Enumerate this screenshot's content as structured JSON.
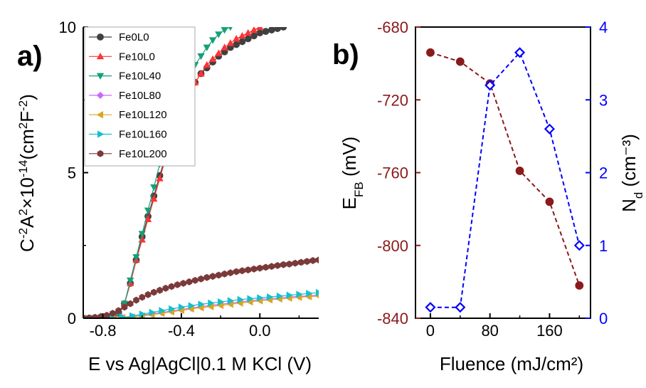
{
  "chart_data": [
    {
      "panel": "a)",
      "type": "scatter",
      "xlabel": "E vs Ag|AgCl|0.1 M KCl (V)",
      "ylabel": "C⁻²A²×10⁻¹⁴(cm²F⁻²)",
      "xlim": [
        -0.9,
        0.3
      ],
      "ylim": [
        0,
        10
      ],
      "xticks": [
        "-0.8",
        "-0.4",
        "0.0"
      ],
      "xtick_values": [
        -0.8,
        -0.4,
        0.0
      ],
      "yticks": [
        "0",
        "5",
        "10"
      ],
      "ytick_values": [
        0,
        5,
        10
      ],
      "legend_position": "top-left",
      "series": [
        {
          "name": "Fe0L0",
          "color": "#404040",
          "marker": "circle",
          "x": [
            -0.9,
            -0.87,
            -0.84,
            -0.81,
            -0.78,
            -0.75,
            -0.72,
            -0.69,
            -0.66,
            -0.63,
            -0.6,
            -0.57,
            -0.54,
            -0.51,
            -0.48,
            -0.45,
            -0.42,
            -0.39,
            -0.36,
            -0.33,
            -0.3,
            -0.27,
            -0.24,
            -0.21,
            -0.18,
            -0.15,
            -0.12,
            -0.09,
            -0.06,
            -0.03,
            0.0,
            0.03,
            0.06,
            0.09,
            0.12
          ],
          "y": [
            0,
            0,
            0,
            0,
            0,
            0.05,
            0.2,
            0.5,
            1.2,
            2.0,
            2.8,
            3.5,
            4.2,
            4.9,
            5.6,
            6.2,
            6.8,
            7.3,
            7.8,
            8.1,
            8.4,
            8.6,
            8.8,
            9.0,
            9.15,
            9.3,
            9.4,
            9.5,
            9.6,
            9.7,
            9.8,
            9.85,
            9.9,
            9.95,
            10.0
          ]
        },
        {
          "name": "Fe10L0",
          "color": "#FF3333",
          "marker": "triangle-up",
          "x": [
            -0.9,
            -0.85,
            -0.8,
            -0.75,
            -0.72,
            -0.69,
            -0.66,
            -0.63,
            -0.6,
            -0.57,
            -0.54,
            -0.51,
            -0.48,
            -0.45,
            -0.42,
            -0.39,
            -0.36,
            -0.33,
            -0.3,
            -0.27,
            -0.24,
            -0.21,
            -0.18,
            -0.15,
            -0.12,
            -0.09,
            -0.06,
            -0.03,
            0.0
          ],
          "y": [
            0,
            0,
            0,
            0.03,
            0.15,
            0.5,
            1.2,
            2.0,
            2.7,
            3.4,
            4.1,
            4.8,
            5.5,
            6.2,
            6.8,
            7.3,
            7.7,
            8.1,
            8.4,
            8.7,
            8.9,
            9.1,
            9.3,
            9.45,
            9.6,
            9.7,
            9.8,
            9.9,
            10.0
          ]
        },
        {
          "name": "Fe10L40",
          "color": "#14A078",
          "marker": "triangle-down",
          "x": [
            -0.9,
            -0.85,
            -0.8,
            -0.75,
            -0.72,
            -0.69,
            -0.66,
            -0.63,
            -0.6,
            -0.57,
            -0.54,
            -0.51,
            -0.48,
            -0.45,
            -0.42,
            -0.39,
            -0.36,
            -0.33,
            -0.3,
            -0.27,
            -0.24,
            -0.21,
            -0.18,
            -0.15
          ],
          "y": [
            0,
            0,
            0,
            0.03,
            0.15,
            0.5,
            1.3,
            2.1,
            2.9,
            3.7,
            4.5,
            5.3,
            6.0,
            6.7,
            7.3,
            7.8,
            8.3,
            8.7,
            9.0,
            9.3,
            9.55,
            9.75,
            9.9,
            10.0
          ]
        },
        {
          "name": "Fe10L80",
          "color": "#CC66FF",
          "marker": "diamond",
          "x": [
            -0.9,
            -0.85,
            -0.8,
            -0.75,
            -0.7,
            -0.65,
            -0.6,
            -0.55,
            -0.5,
            -0.45,
            -0.4,
            -0.35,
            -0.3,
            -0.25,
            -0.2,
            -0.15,
            -0.1,
            -0.05,
            0.0,
            0.05,
            0.1,
            0.15,
            0.2,
            0.25,
            0.3
          ],
          "y": [
            0,
            0,
            0,
            0,
            0.02,
            0.05,
            0.1,
            0.15,
            0.2,
            0.25,
            0.3,
            0.35,
            0.4,
            0.44,
            0.48,
            0.52,
            0.56,
            0.6,
            0.64,
            0.67,
            0.7,
            0.73,
            0.75,
            0.77,
            0.8
          ]
        },
        {
          "name": "Fe10L120",
          "color": "#DAA520",
          "marker": "triangle-left",
          "x": [
            -0.9,
            -0.85,
            -0.8,
            -0.75,
            -0.7,
            -0.65,
            -0.6,
            -0.55,
            -0.5,
            -0.45,
            -0.4,
            -0.35,
            -0.3,
            -0.25,
            -0.2,
            -0.15,
            -0.1,
            -0.05,
            0.0,
            0.05,
            0.1,
            0.15,
            0.2,
            0.25,
            0.3
          ],
          "y": [
            0,
            0,
            0,
            0,
            0.02,
            0.04,
            0.08,
            0.12,
            0.17,
            0.22,
            0.27,
            0.32,
            0.36,
            0.4,
            0.44,
            0.48,
            0.52,
            0.56,
            0.6,
            0.63,
            0.66,
            0.69,
            0.72,
            0.74,
            0.76
          ]
        },
        {
          "name": "Fe10L160",
          "color": "#17BECF",
          "marker": "triangle-right",
          "x": [
            -0.9,
            -0.85,
            -0.8,
            -0.75,
            -0.7,
            -0.65,
            -0.6,
            -0.55,
            -0.5,
            -0.45,
            -0.4,
            -0.35,
            -0.3,
            -0.25,
            -0.2,
            -0.15,
            -0.1,
            -0.05,
            0.0,
            0.05,
            0.1,
            0.15,
            0.2,
            0.25,
            0.3
          ],
          "y": [
            0,
            0,
            0,
            0,
            0.03,
            0.08,
            0.14,
            0.2,
            0.26,
            0.32,
            0.38,
            0.43,
            0.48,
            0.52,
            0.56,
            0.6,
            0.64,
            0.67,
            0.7,
            0.73,
            0.76,
            0.79,
            0.82,
            0.85,
            0.88
          ]
        },
        {
          "name": "Fe10L200",
          "color": "#7B3A3A",
          "marker": "hexagon",
          "x": [
            -0.9,
            -0.87,
            -0.84,
            -0.81,
            -0.78,
            -0.75,
            -0.72,
            -0.69,
            -0.66,
            -0.63,
            -0.6,
            -0.57,
            -0.54,
            -0.51,
            -0.48,
            -0.45,
            -0.42,
            -0.39,
            -0.36,
            -0.33,
            -0.3,
            -0.27,
            -0.24,
            -0.21,
            -0.18,
            -0.15,
            -0.12,
            -0.09,
            -0.06,
            -0.03,
            0.0,
            0.03,
            0.06,
            0.09,
            0.12,
            0.15,
            0.18,
            0.21,
            0.24,
            0.27,
            0.3
          ],
          "y": [
            0,
            0.01,
            0.03,
            0.06,
            0.1,
            0.17,
            0.26,
            0.38,
            0.5,
            0.62,
            0.72,
            0.81,
            0.89,
            0.96,
            1.03,
            1.09,
            1.15,
            1.2,
            1.25,
            1.3,
            1.35,
            1.4,
            1.44,
            1.48,
            1.52,
            1.56,
            1.6,
            1.63,
            1.66,
            1.69,
            1.72,
            1.75,
            1.78,
            1.81,
            1.84,
            1.86,
            1.89,
            1.92,
            1.95,
            1.98,
            2.0
          ]
        }
      ]
    },
    {
      "panel": "b)",
      "type": "line",
      "xlabel": "Fluence (mJ/cm²)",
      "xlim": [
        -20,
        215
      ],
      "xticks": [
        "0",
        "80",
        "160"
      ],
      "xtick_values": [
        0,
        80,
        160
      ],
      "x": [
        0,
        40,
        80,
        120,
        160,
        200
      ],
      "left_axis": {
        "label": "E",
        "label_sub": "FB",
        "label_rest": " (mV)",
        "ylim": [
          -840,
          -680
        ],
        "yticks": [
          "-840",
          "-800",
          "-760",
          "-720",
          "-680"
        ],
        "ytick_values": [
          -840,
          -800,
          -760,
          -720,
          -680
        ],
        "color": "#8B1A1A"
      },
      "right_axis": {
        "label": "N",
        "label_sub": "d",
        "label_rest": " (cm⁻³)",
        "ylim": [
          0,
          4
        ],
        "yticks": [
          "0",
          "1",
          "2",
          "3",
          "4"
        ],
        "ytick_values": [
          0,
          1,
          2,
          3,
          4
        ],
        "color": "#0000FF"
      },
      "series": [
        {
          "axis": "left",
          "color": "#8B1A1A",
          "marker": "filled-circle",
          "line": "dashed",
          "values": [
            -694,
            -699,
            -711,
            -759,
            -776,
            -822
          ]
        },
        {
          "axis": "right",
          "color": "#0000FF",
          "marker": "open-diamond",
          "line": "dashed",
          "values": [
            0.15,
            0.15,
            3.2,
            3.65,
            2.6,
            1.0
          ]
        }
      ]
    }
  ]
}
